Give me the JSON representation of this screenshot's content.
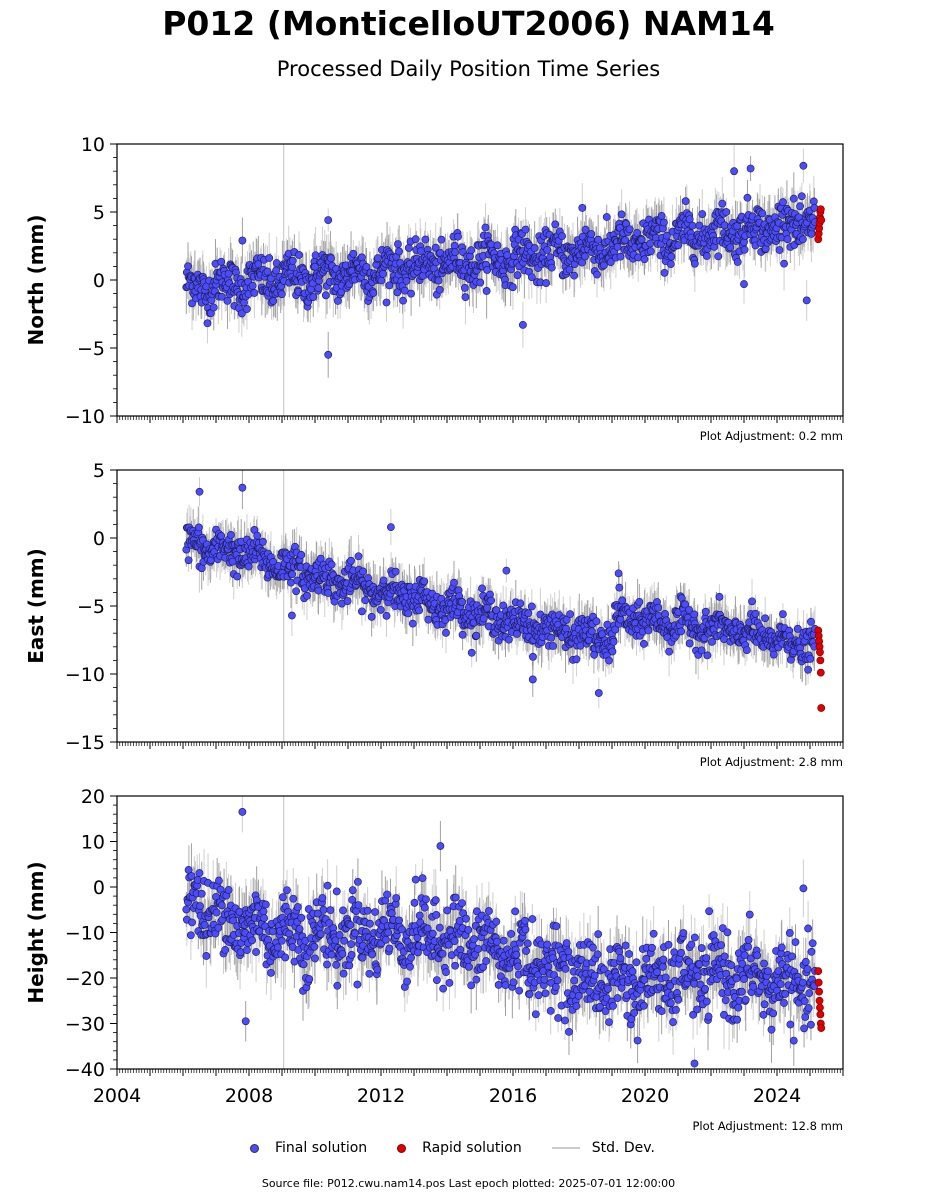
{
  "title": "P012 (MonticelloUT2006) NAM14",
  "subtitle": "Processed Daily Position Time Series",
  "source_line": "Source file: P012.cwu.nam14.pos  Last epoch plotted: 2025-07-01 12:00:00",
  "legend": {
    "final": "Final solution",
    "rapid": "Rapid solution",
    "std": "Std. Dev."
  },
  "colors": {
    "final": "#4c4cff",
    "rapid": "#e00000",
    "std": "#bbbbbb",
    "gap_line": "#cccccc"
  },
  "chart_data": [
    {
      "type": "scatter",
      "ylabel": "North (mm)",
      "ylim": [
        -10,
        10
      ],
      "yticks": [
        -10,
        -5,
        0,
        5,
        10
      ],
      "xlim": [
        2004,
        2026
      ],
      "xticks": [
        2004,
        2008,
        2012,
        2016,
        2020,
        2024
      ],
      "show_xtick_labels": false,
      "adjustment": "Plot Adjustment: 0.2 mm",
      "vertical_marker_x": 2009.05,
      "trend": [
        [
          2006.1,
          -0.6
        ],
        [
          2010,
          0.2
        ],
        [
          2014,
          1.2
        ],
        [
          2018,
          2.1
        ],
        [
          2022,
          3.5
        ],
        [
          2025.2,
          4.2
        ]
      ],
      "scatter_sd": 1.1,
      "error_bar_half": 1.4,
      "outliers": [
        [
          2010.4,
          4.4
        ],
        [
          2010.4,
          -5.5
        ],
        [
          2016.3,
          -3.3
        ],
        [
          2022.7,
          8.0
        ],
        [
          2023.2,
          8.2
        ],
        [
          2024.8,
          8.4
        ],
        [
          2024.9,
          -1.5
        ],
        [
          2007.8,
          2.9
        ],
        [
          2018.1,
          5.3
        ],
        [
          2023.0,
          -0.3
        ]
      ],
      "final_x_range": [
        2006.1,
        2025.15
      ],
      "rapid": {
        "x_range": [
          2025.2,
          2025.5
        ],
        "y_values": [
          3.0,
          3.4,
          3.8,
          4.2,
          4.6,
          5.0,
          5.2,
          4.4
        ]
      }
    },
    {
      "type": "scatter",
      "ylabel": "East (mm)",
      "ylim": [
        -15,
        5
      ],
      "yticks": [
        -15,
        -10,
        -5,
        0,
        5
      ],
      "xlim": [
        2004,
        2026
      ],
      "xticks": [
        2004,
        2008,
        2012,
        2016,
        2020,
        2024
      ],
      "show_xtick_labels": false,
      "adjustment": "Plot Adjustment: 2.8 mm",
      "vertical_marker_x": 2009.05,
      "trend": [
        [
          2006.1,
          -0.5
        ],
        [
          2008,
          -1.2
        ],
        [
          2010,
          -2.8
        ],
        [
          2012,
          -3.9
        ],
        [
          2014,
          -5.0
        ],
        [
          2016,
          -6.2
        ],
        [
          2019.0,
          -7.6
        ],
        [
          2019.1,
          -5.9
        ],
        [
          2021,
          -6.3
        ],
        [
          2023,
          -7.0
        ],
        [
          2025.2,
          -8.0
        ]
      ],
      "scatter_sd": 0.9,
      "error_bar_half": 1.3,
      "outliers": [
        [
          2006.5,
          3.4
        ],
        [
          2007.8,
          3.7
        ],
        [
          2012.3,
          0.8
        ],
        [
          2015.8,
          -2.4
        ],
        [
          2016.6,
          -10.4
        ],
        [
          2018.6,
          -11.4
        ],
        [
          2009.3,
          -5.7
        ],
        [
          2019.2,
          -2.6
        ]
      ],
      "final_x_range": [
        2006.1,
        2025.15
      ],
      "rapid": {
        "x_range": [
          2025.2,
          2025.5
        ],
        "y_values": [
          -6.8,
          -7.2,
          -7.6,
          -8.0,
          -8.4,
          -9.0,
          -9.9,
          -12.5
        ]
      }
    },
    {
      "type": "scatter",
      "ylabel": "Height (mm)",
      "ylim": [
        -40,
        20
      ],
      "yticks": [
        -40,
        -30,
        -20,
        -10,
        0,
        10,
        20
      ],
      "xlim": [
        2004,
        2026
      ],
      "xticks": [
        2004,
        2008,
        2012,
        2016,
        2020,
        2024
      ],
      "show_xtick_labels": true,
      "adjustment": "Plot Adjustment: 12.8 mm",
      "vertical_marker_x": 2009.05,
      "trend": [
        [
          2006.1,
          -3.0
        ],
        [
          2008,
          -9.0
        ],
        [
          2010,
          -10.5
        ],
        [
          2012,
          -10.0
        ],
        [
          2014,
          -11.0
        ],
        [
          2016,
          -15.0
        ],
        [
          2018,
          -20.0
        ],
        [
          2020,
          -21.0
        ],
        [
          2022,
          -19.0
        ],
        [
          2025.2,
          -22.0
        ]
      ],
      "scatter_sd": 5.5,
      "error_bar_half": 5.0,
      "outliers": [
        [
          2007.8,
          16.5
        ],
        [
          2013.8,
          9.0
        ],
        [
          2021.5,
          -38.8
        ],
        [
          2024.8,
          -0.3
        ],
        [
          2007.9,
          -29.5
        ]
      ],
      "final_x_range": [
        2006.1,
        2025.15
      ],
      "rapid": {
        "x_range": [
          2025.2,
          2025.5
        ],
        "y_values": [
          -18.5,
          -21.0,
          -23.0,
          -25.0,
          -26.5,
          -28.0,
          -30.0,
          -31.0
        ]
      }
    }
  ]
}
